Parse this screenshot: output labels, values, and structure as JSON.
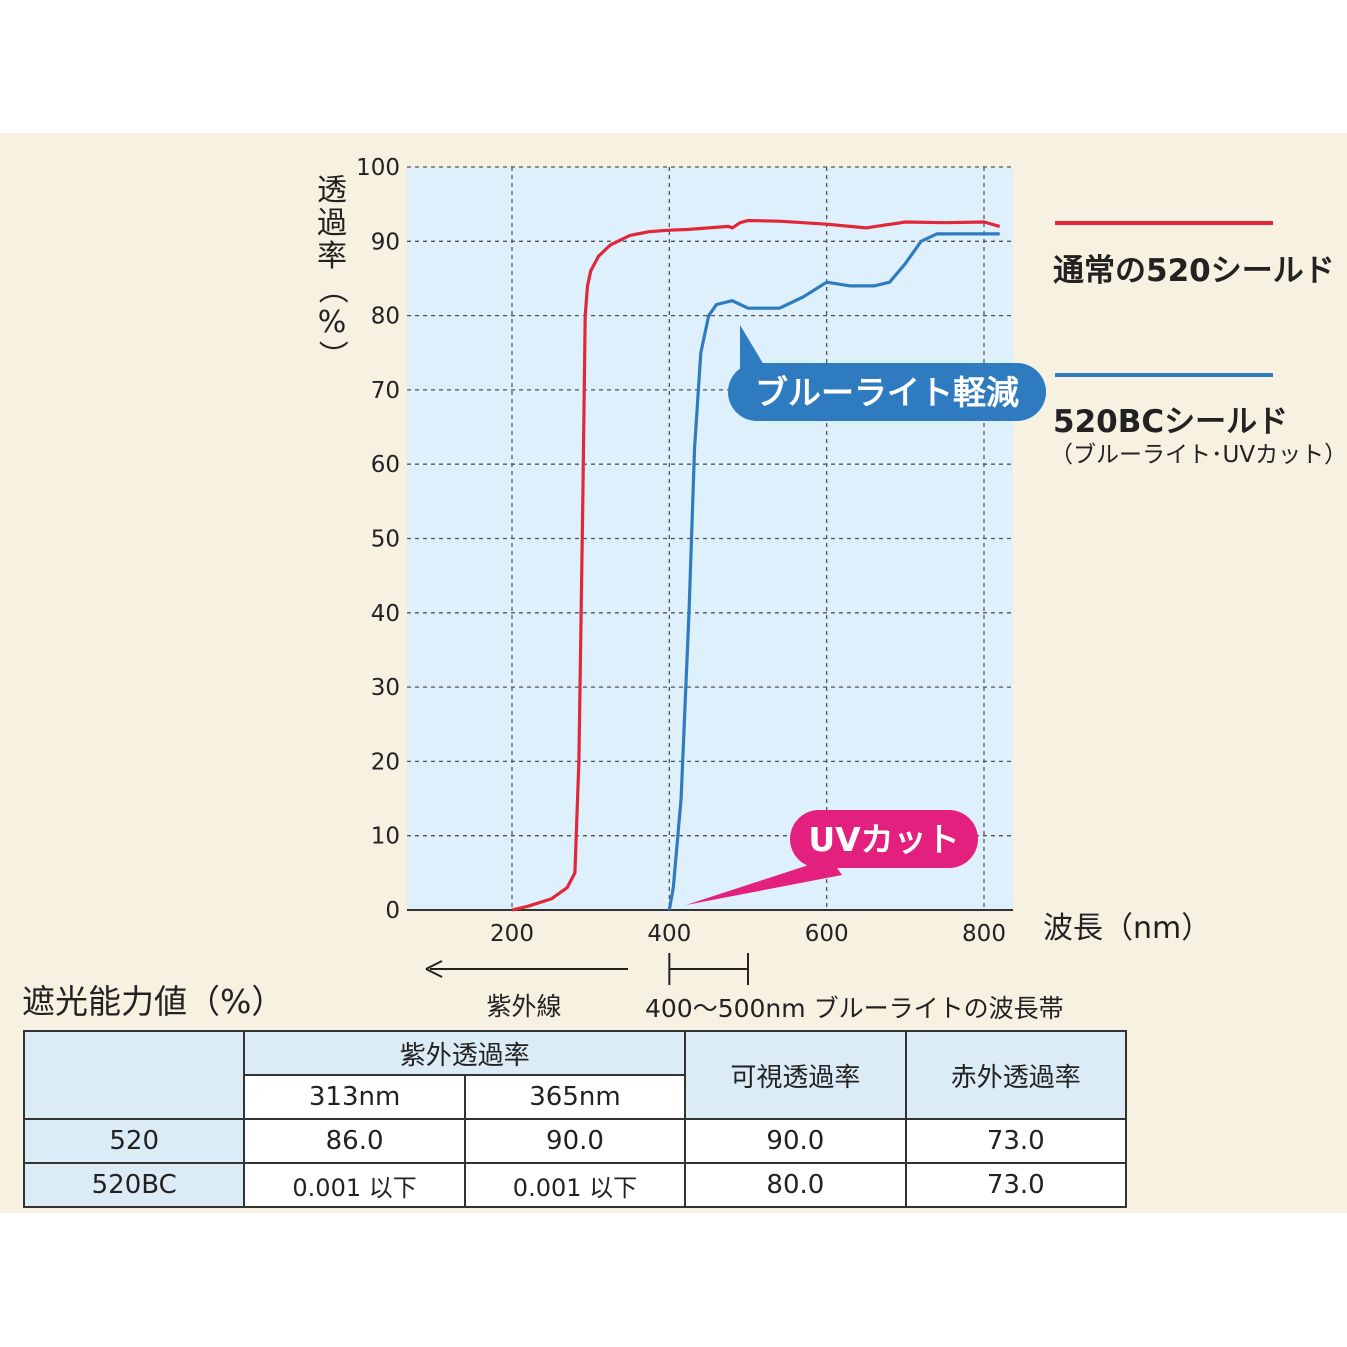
{
  "chart_data": {
    "type": "line",
    "ylabel": "透過率（%）",
    "xlabel": "波長（nm）",
    "xlim": [
      0,
      830
    ],
    "ylim": [
      0,
      100
    ],
    "x_ticks": [
      "200",
      "400",
      "600",
      "800"
    ],
    "x_tick_values": [
      200,
      400,
      600,
      800
    ],
    "y_ticks": [
      "0",
      "10",
      "20",
      "30",
      "40",
      "50",
      "60",
      "70",
      "80",
      "90",
      "100"
    ],
    "grid": true,
    "series": [
      {
        "name": "通常の520シールド",
        "color": "#e0283a",
        "x": [
          200,
          220,
          250,
          270,
          280,
          285,
          290,
          293,
          296,
          300,
          310,
          325,
          350,
          375,
          400,
          425,
          450,
          475,
          480,
          490,
          500,
          540,
          600,
          650,
          700,
          750,
          800,
          820
        ],
        "y": [
          0,
          0.5,
          1.5,
          3,
          5,
          20,
          55,
          80,
          84,
          86,
          88,
          89.5,
          90.8,
          91.3,
          91.5,
          91.6,
          91.8,
          92,
          91.8,
          92.5,
          92.8,
          92.7,
          92.3,
          91.8,
          92.6,
          92.5,
          92.6,
          92
        ]
      },
      {
        "name": "520BCシールド",
        "color": "#2e7bbf",
        "x": [
          400,
          405,
          415,
          425,
          432,
          440,
          450,
          460,
          480,
          500,
          540,
          570,
          600,
          630,
          660,
          680,
          700,
          720,
          740,
          760,
          800,
          820
        ],
        "y": [
          0,
          3,
          15,
          40,
          62,
          75,
          80,
          81.5,
          82,
          81,
          81,
          82.5,
          84.5,
          84,
          84,
          84.5,
          87,
          90,
          91,
          91,
          91,
          91
        ]
      }
    ],
    "legend_entries": [
      {
        "label": "通常の520シールド",
        "color": "#e0283a"
      },
      {
        "label": "520BCシールド",
        "sub": "（ブルーライト･UVカット）",
        "color": "#2e7bbf"
      }
    ],
    "legend_position": "right",
    "annotations": {
      "blue_callout": "ブルーライト軽減",
      "uv_callout": "UVカット",
      "uv_arrow_label": "紫外線",
      "blue_band_label": "400～500nm ブルーライトの波長帯",
      "blue_band_range": [
        400,
        500
      ]
    }
  },
  "table": {
    "title": "遮光能力値（%）",
    "group_header": "紫外透過率",
    "sub_headers": [
      "313nm",
      "365nm"
    ],
    "visible_header": "可視透過率",
    "infrared_header": "赤外透過率",
    "rows": [
      {
        "label": "520",
        "v313": "86.0",
        "v365": "90.0",
        "visible": "90.0",
        "infrared": "73.0"
      },
      {
        "label": "520BC",
        "v313": "0.001 以下",
        "v365": "0.001 以下",
        "visible": "80.0",
        "infrared": "73.0"
      }
    ]
  },
  "colors": {
    "panel_bg": "#f6f1e1",
    "plot_bg": "#def0fb",
    "uv_callout_bg": "#e4207e",
    "blue_callout_bg": "#2e7bbf",
    "header_bg": "#dcecf7"
  }
}
